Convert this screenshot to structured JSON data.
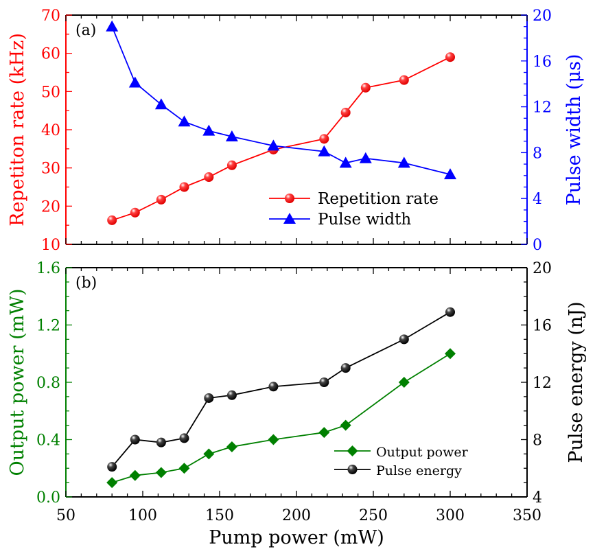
{
  "chart_data": [
    {
      "type": "line",
      "panel_label": "(a)",
      "x": [
        80,
        95,
        112,
        127,
        143,
        158,
        185,
        218,
        232,
        245,
        270,
        300
      ],
      "xlim": [
        50,
        350
      ],
      "series": [
        {
          "name": "Repetition rate",
          "axis": "left",
          "color": "#ff0000",
          "marker": "circle",
          "values": [
            16.3,
            18.3,
            21.7,
            25.0,
            27.6,
            30.7,
            34.8,
            37.6,
            44.5,
            51.0,
            53.0,
            59.0
          ]
        },
        {
          "name": "Pulse width",
          "axis": "right",
          "color": "#0000ff",
          "marker": "triangle",
          "values": [
            19.0,
            14.1,
            12.2,
            10.7,
            9.9,
            9.4,
            8.6,
            8.1,
            7.1,
            7.5,
            7.1,
            6.1
          ]
        }
      ],
      "ylabel": "Repetiton rate (kHz)",
      "ylim": [
        10,
        70
      ],
      "yticks": [
        10,
        20,
        30,
        40,
        50,
        60,
        70
      ],
      "ylabel_right": "Pulse width (μs)",
      "ylim_right": [
        0,
        20
      ],
      "yticks_right": [
        0,
        4,
        8,
        12,
        16,
        20
      ],
      "legend": "bottom-right",
      "grid": false
    },
    {
      "type": "line",
      "panel_label": "(b)",
      "x": [
        80,
        95,
        112,
        127,
        143,
        158,
        185,
        218,
        232,
        270,
        300
      ],
      "xlim": [
        50,
        350
      ],
      "xlabel": "Pump power (mW)",
      "xticks": [
        50,
        100,
        150,
        200,
        250,
        300,
        350
      ],
      "series": [
        {
          "name": "Output power",
          "axis": "left",
          "color": "#008000",
          "marker": "diamond",
          "values": [
            0.1,
            0.15,
            0.17,
            0.2,
            0.3,
            0.35,
            0.4,
            0.45,
            0.5,
            0.8,
            1.0
          ]
        },
        {
          "name": "Pulse energy",
          "axis": "right",
          "color": "#000000",
          "marker": "circle",
          "values": [
            6.1,
            8.0,
            7.8,
            8.1,
            10.9,
            11.1,
            11.7,
            12.0,
            13.0,
            15.0,
            16.9
          ]
        }
      ],
      "ylabel": "Output power (mW)",
      "ylim": [
        0,
        1.6
      ],
      "yticks": [
        "0.0",
        "0.4",
        "0.8",
        "1.2",
        "1.6"
      ],
      "ylabel_right": "Pulse energy (nJ)",
      "ylim_right": [
        4,
        20
      ],
      "yticks_right": [
        4,
        8,
        12,
        16,
        20
      ],
      "legend": "bottom-right",
      "grid": false
    }
  ]
}
